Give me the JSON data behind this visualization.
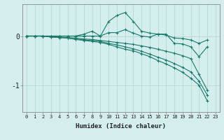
{
  "xlabel": "Humidex (Indice chaleur)",
  "ylabel": "",
  "bg_color": "#d4eeed",
  "grid_color": "#b8dbd9",
  "line_color": "#1a7a6a",
  "x": [
    0,
    1,
    2,
    3,
    4,
    5,
    6,
    7,
    8,
    9,
    10,
    11,
    12,
    13,
    14,
    15,
    16,
    17,
    18,
    19,
    20,
    21,
    22,
    23
  ],
  "series": [
    [
      0.0,
      0.0,
      0.0,
      0.0,
      0.0,
      0.0,
      0.0,
      0.04,
      0.1,
      0.0,
      0.3,
      0.42,
      0.48,
      0.3,
      0.1,
      0.06,
      0.04,
      0.04,
      -0.15,
      -0.16,
      -0.22,
      -0.42,
      -0.22,
      null
    ],
    [
      0.0,
      0.0,
      0.0,
      0.0,
      0.0,
      0.0,
      0.0,
      0.0,
      0.0,
      0.0,
      0.07,
      0.07,
      0.13,
      0.06,
      0.0,
      -0.02,
      0.04,
      0.02,
      -0.04,
      -0.05,
      -0.08,
      -0.15,
      -0.08,
      null
    ],
    [
      0.0,
      0.0,
      0.0,
      -0.01,
      -0.02,
      -0.03,
      -0.04,
      -0.06,
      -0.07,
      -0.09,
      -0.11,
      -0.13,
      -0.15,
      -0.17,
      -0.2,
      -0.23,
      -0.27,
      -0.31,
      -0.35,
      -0.4,
      -0.46,
      -0.78,
      -1.1,
      null
    ],
    [
      0.0,
      0.0,
      0.0,
      -0.02,
      -0.03,
      -0.04,
      -0.06,
      -0.08,
      -0.09,
      -0.11,
      -0.15,
      -0.18,
      -0.22,
      -0.26,
      -0.31,
      -0.37,
      -0.43,
      -0.49,
      -0.56,
      -0.64,
      -0.73,
      -0.92,
      -1.2,
      null
    ],
    [
      0.0,
      0.0,
      0.0,
      -0.02,
      -0.03,
      -0.04,
      -0.07,
      -0.09,
      -0.11,
      -0.13,
      -0.17,
      -0.22,
      -0.27,
      -0.3,
      -0.36,
      -0.42,
      -0.5,
      -0.57,
      -0.65,
      -0.74,
      -0.86,
      -1.0,
      -1.32,
      null
    ]
  ],
  "ylim": [
    -1.55,
    0.65
  ],
  "yticks": [
    -1.0,
    0.0
  ],
  "xlim": [
    -0.5,
    23.5
  ],
  "figsize": [
    3.2,
    2.0
  ],
  "dpi": 100
}
